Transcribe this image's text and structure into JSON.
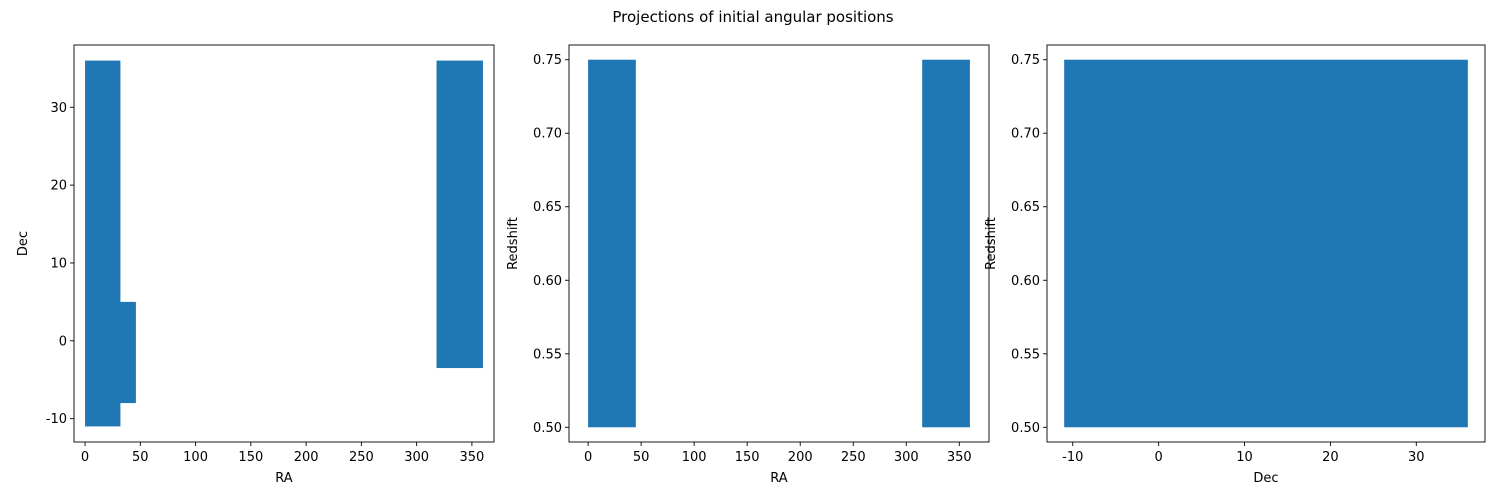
{
  "figure": {
    "title": "Projections of initial angular positions"
  },
  "chart_data": [
    {
      "type": "scatter",
      "title": "",
      "xlabel": "RA",
      "ylabel": "Dec",
      "xlim": [
        -10,
        370
      ],
      "ylim": [
        -13,
        38
      ],
      "xticks": [
        0,
        50,
        100,
        150,
        200,
        250,
        300,
        350
      ],
      "yticks": [
        -10,
        0,
        10,
        20,
        30
      ],
      "color": "#1f77b4",
      "regions": [
        {
          "x": [
            0,
            32
          ],
          "y": [
            -11,
            36
          ]
        },
        {
          "x": [
            30,
            46
          ],
          "y": [
            -8,
            5
          ]
        },
        {
          "x": [
            318,
            360
          ],
          "y": [
            -3.5,
            36
          ]
        }
      ]
    },
    {
      "type": "scatter",
      "title": "",
      "xlabel": "RA",
      "ylabel": "Redshift",
      "xlim": [
        -18,
        378
      ],
      "ylim": [
        0.49,
        0.76
      ],
      "xticks": [
        0,
        50,
        100,
        150,
        200,
        250,
        300,
        350
      ],
      "yticks": [
        "0.50",
        "0.55",
        "0.60",
        "0.65",
        "0.70",
        "0.75"
      ],
      "color": "#1f77b4",
      "regions": [
        {
          "x": [
            0,
            45
          ],
          "y": [
            0.5,
            0.75
          ]
        },
        {
          "x": [
            315,
            360
          ],
          "y": [
            0.5,
            0.75
          ]
        }
      ]
    },
    {
      "type": "scatter",
      "title": "",
      "xlabel": "Dec",
      "ylabel": "Redshift",
      "xlim": [
        -13,
        38
      ],
      "ylim": [
        0.49,
        0.76
      ],
      "xticks": [
        -10,
        0,
        10,
        20,
        30
      ],
      "yticks": [
        "0.50",
        "0.55",
        "0.60",
        "0.65",
        "0.70",
        "0.75"
      ],
      "color": "#1f77b4",
      "regions": [
        {
          "x": [
            -11,
            36
          ],
          "y": [
            0.5,
            0.75
          ]
        }
      ]
    }
  ]
}
